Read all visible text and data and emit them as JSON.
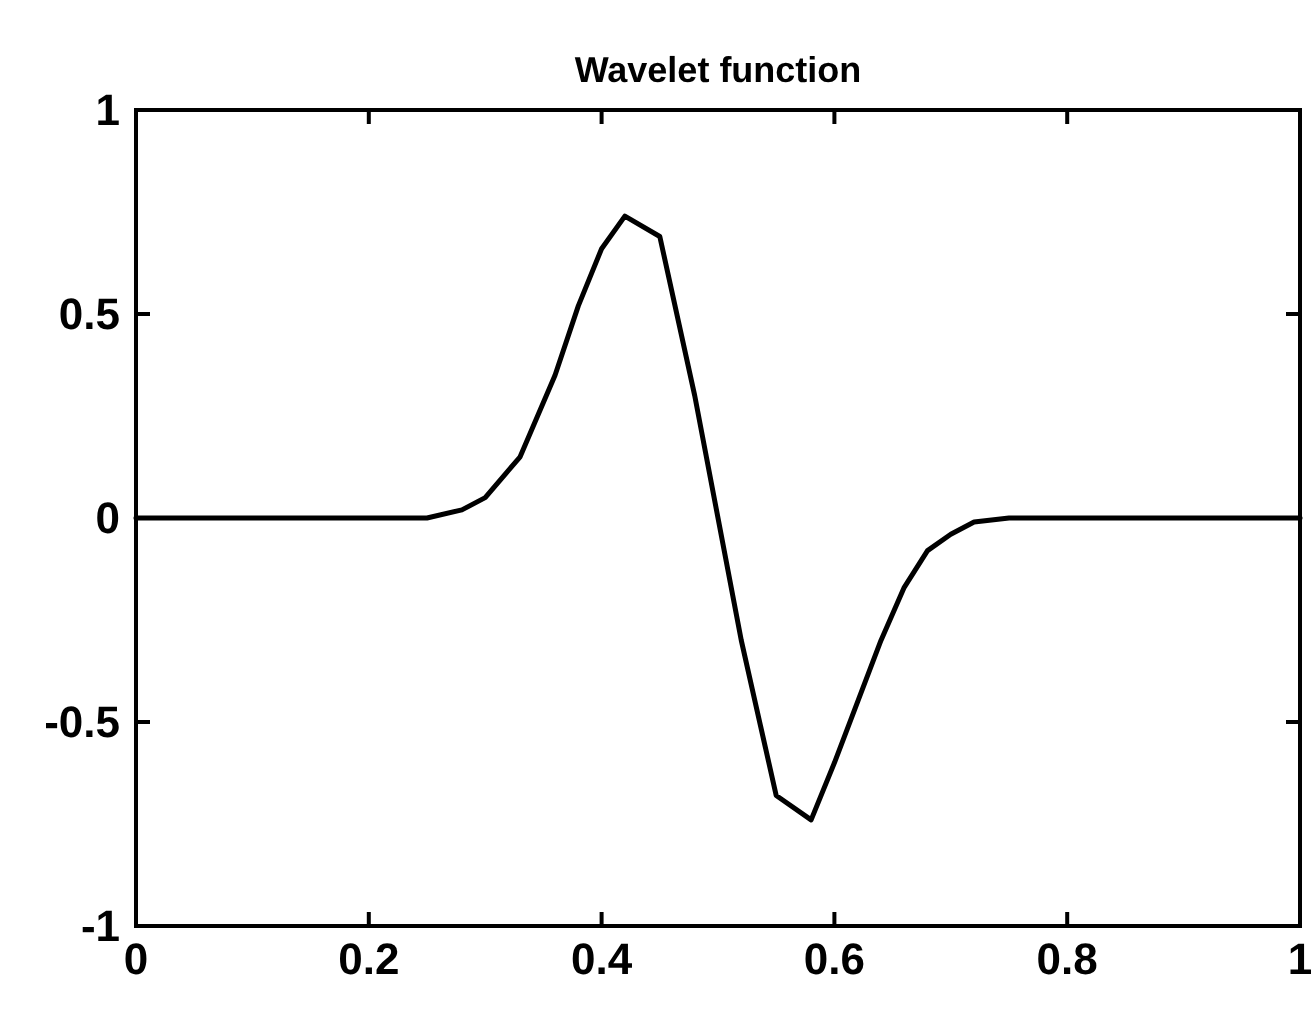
{
  "chart_data": {
    "type": "line",
    "title": "Wavelet function",
    "x": [
      0,
      0.1,
      0.2,
      0.25,
      0.28,
      0.3,
      0.33,
      0.36,
      0.38,
      0.4,
      0.42,
      0.45,
      0.48,
      0.5,
      0.52,
      0.55,
      0.58,
      0.6,
      0.62,
      0.64,
      0.66,
      0.68,
      0.7,
      0.72,
      0.75,
      0.8,
      0.9,
      1
    ],
    "series": [
      {
        "color": "#000000",
        "values": [
          0,
          0,
          0,
          0,
          0.02,
          0.05,
          0.15,
          0.35,
          0.52,
          0.66,
          0.74,
          0.69,
          0.3,
          0,
          -0.3,
          -0.68,
          -0.74,
          -0.6,
          -0.45,
          -0.3,
          -0.17,
          -0.08,
          -0.04,
          -0.01,
          0,
          0,
          0,
          0
        ]
      }
    ],
    "xlim": [
      0,
      1
    ],
    "ylim": [
      -1,
      1
    ],
    "xticks": [
      0,
      0.2,
      0.4,
      0.6,
      0.8,
      1
    ],
    "yticks": [
      -1,
      -0.5,
      0,
      0.5,
      1
    ],
    "grid": false,
    "line_style": "solid",
    "marker": "none"
  }
}
